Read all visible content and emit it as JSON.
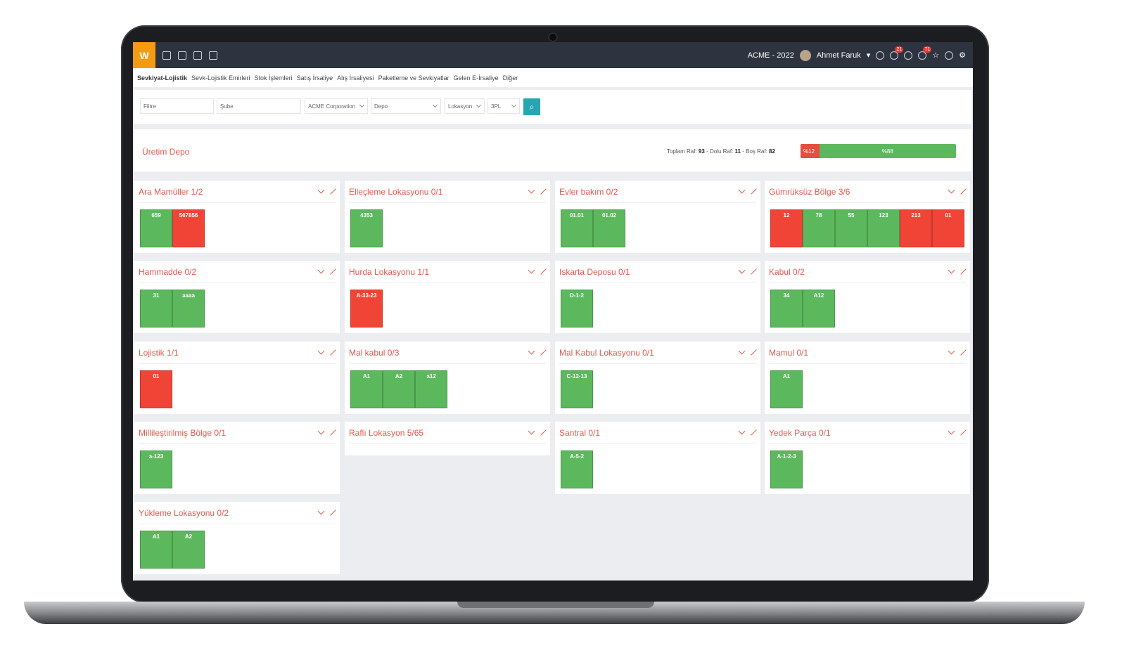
{
  "app": {
    "logo_text": "W",
    "company": "ACME - 2022",
    "user": "Ahmet Faruk",
    "badge_messages": "21",
    "badge_notifications": "71"
  },
  "subnav": {
    "active": "Sevkiyat-Lojistik",
    "items": [
      "Sevk-Lojistik Emirleri",
      "Stok İşlemleri",
      "Satış İrsaliye",
      "Alış İrsaliyesi",
      "Paketleme ve Sevkiyatlar",
      "Gelen E-İrsaliye"
    ],
    "more": "Diğer"
  },
  "filters": {
    "filtre": "Filtre",
    "sube": "Şube",
    "company": "ACME Corporation",
    "depo": "Depo",
    "lokasyon": "Lokasyon",
    "3pl": "3PL"
  },
  "summary": {
    "title": "Üretim Depo",
    "label_total": "Toplam Raf:",
    "total": "93",
    "label_full": "- Dolu Raf:",
    "full": "11",
    "label_empty": "- Boş Raf:",
    "empty": "82",
    "red_label": "%12",
    "green_label": "%88",
    "occupancy": 0.12
  },
  "colors": {
    "accent": "#e05a4f",
    "empty_shelf": "#5cb85c",
    "full_shelf": "#f04437",
    "topbar": "#2d3440",
    "search": "#26a6b3"
  },
  "cards": [
    {
      "title": "Ara Mamüller 1/2",
      "shelves": [
        [
          "659",
          "g"
        ],
        [
          "567856",
          "r"
        ]
      ]
    },
    {
      "title": "Elleçleme Lokasyonu 0/1",
      "shelves": [
        [
          "4353",
          "g"
        ]
      ]
    },
    {
      "title": "Evler bakım 0/2",
      "shelves": [
        [
          "01.01",
          "g"
        ],
        [
          "01.02",
          "g"
        ]
      ]
    },
    {
      "title": "Gümrüksüz Bölge 3/6",
      "shelves": [
        [
          "12",
          "r"
        ],
        [
          "78",
          "g"
        ],
        [
          "55",
          "g"
        ],
        [
          "123",
          "g"
        ],
        [
          "213",
          "r"
        ],
        [
          "01",
          "r"
        ]
      ]
    },
    {
      "title": "Hammadde 0/2",
      "shelves": [
        [
          "31",
          "g"
        ],
        [
          "aaaa",
          "g"
        ]
      ]
    },
    {
      "title": "Hurda Lokasyonu 1/1",
      "shelves": [
        [
          "A-33-23",
          "r"
        ]
      ]
    },
    {
      "title": "Iskarta Deposu 0/1",
      "shelves": [
        [
          "D-1-2",
          "g"
        ]
      ]
    },
    {
      "title": "Kabul 0/2",
      "shelves": [
        [
          "34",
          "g"
        ],
        [
          "A12",
          "g"
        ]
      ]
    },
    {
      "title": "Lojistik 1/1",
      "shelves": [
        [
          "01",
          "r"
        ]
      ]
    },
    {
      "title": "Mal kabul 0/3",
      "shelves": [
        [
          "A1",
          "g"
        ],
        [
          "A2",
          "g"
        ],
        [
          "a12",
          "g"
        ]
      ]
    },
    {
      "title": "Mal Kabul Lokasyonu 0/1",
      "shelves": [
        [
          "C-12-13",
          "g"
        ]
      ]
    },
    {
      "title": "Mamul 0/1",
      "shelves": [
        [
          "A1",
          "g"
        ]
      ]
    },
    {
      "title": "Millileştirilmiş Bölge 0/1",
      "shelves": [
        [
          "a-123",
          "g"
        ]
      ]
    },
    {
      "title": "Raflı Lokasyon 5/65",
      "shelves": []
    },
    {
      "title": "Santral 0/1",
      "shelves": [
        [
          "A-5-2",
          "g"
        ]
      ]
    },
    {
      "title": "Yedek Parça 0/1",
      "shelves": [
        [
          "A-1-2-3",
          "g"
        ]
      ]
    },
    {
      "title": "Yükleme Lokasyonu 0/2",
      "shelves": [
        [
          "A1",
          "g"
        ],
        [
          "A2",
          "g"
        ]
      ]
    }
  ]
}
